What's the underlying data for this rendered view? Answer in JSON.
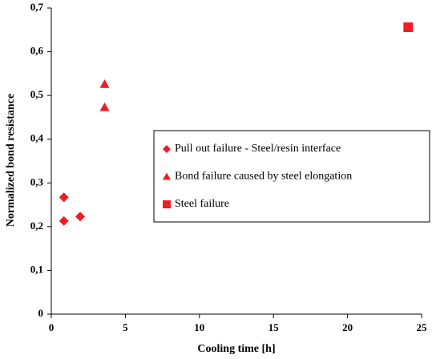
{
  "chart_data": {
    "type": "scatter",
    "x_label": "Cooling time [h]",
    "y_label": "Normalized bond resistance",
    "xlim": [
      0,
      25
    ],
    "xticks": [
      0,
      5,
      10,
      15,
      20,
      25
    ],
    "ylim": [
      0,
      0.7
    ],
    "yticks": [
      0,
      {
        "value": 0.1,
        "label": "0,1"
      },
      {
        "value": 0.2,
        "label": "0,2"
      },
      {
        "value": 0.3,
        "label": "0,3"
      },
      {
        "value": 0.4,
        "label": "0,4"
      },
      {
        "value": 0.5,
        "label": "0,5"
      },
      {
        "value": 0.6,
        "label": "0,6"
      },
      {
        "value": 0.7,
        "label": "0,7"
      }
    ],
    "grid": false,
    "series": [
      {
        "name": "Pull out failure - Steel/resin interface",
        "color": "#ee1c25",
        "marker": "diamond",
        "x": [
          0.85,
          0.85,
          1.95
        ],
        "values": [
          0.267,
          0.213,
          0.223
        ]
      },
      {
        "name": "Bond failure caused by steel elongation",
        "color": "#ee1c25",
        "marker": "triangle",
        "x": [
          3.6,
          3.6
        ],
        "values": [
          0.526,
          0.473
        ]
      },
      {
        "name": "Steel failure",
        "color": "#ee1c25",
        "marker": "square",
        "x": [
          24.1
        ],
        "values": [
          0.656
        ]
      }
    ]
  }
}
